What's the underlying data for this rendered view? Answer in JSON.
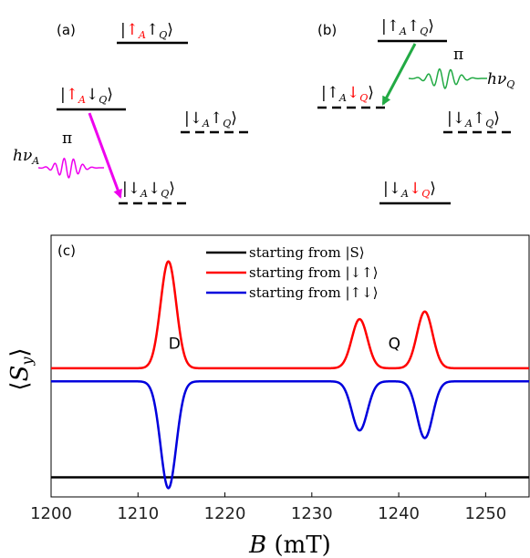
{
  "panels": {
    "a": {
      "label": "(a)",
      "levels": [
        {
          "ket": "|↑A↑Q⟩",
          "dashed": false
        },
        {
          "ket": "|↑A↓Q⟩",
          "dashed": false
        },
        {
          "ket": "|↓A↑Q⟩",
          "dashed": true
        },
        {
          "ket": "|↓A↓Q⟩",
          "dashed": true
        }
      ],
      "pulse_label": "π",
      "photon_label": "hνA",
      "pulse_color": "#ee00ee"
    },
    "b": {
      "label": "(b)",
      "levels": [
        {
          "ket": "|↑A↑Q⟩",
          "dashed": false
        },
        {
          "ket": "|↑A↓Q⟩",
          "dashed": true
        },
        {
          "ket": "|↓A↑Q⟩",
          "dashed": true
        },
        {
          "ket": "|↓A↓Q⟩",
          "dashed": false
        }
      ],
      "pulse_label": "π",
      "photon_label": "hνQ",
      "pulse_color": "#22aa44"
    }
  },
  "chart_data": {
    "type": "line",
    "panel_label": "(c)",
    "xlabel": "B (mT)",
    "ylabel": "⟨Sy⟩",
    "xlim": [
      1200,
      1255
    ],
    "ylim": [
      -1.18,
      1.22
    ],
    "x_ticks": [
      1200,
      1210,
      1220,
      1230,
      1240,
      1250
    ],
    "grid": false,
    "legend_position": "top-center",
    "annotations": [
      {
        "text": "D",
        "x": 1214.2,
        "y": 0.18
      },
      {
        "text": "Q",
        "x": 1239.5,
        "y": 0.18
      }
    ],
    "series": [
      {
        "name": "starting from |S⟩",
        "color": "#000000",
        "baseline": -1.0,
        "peaks": []
      },
      {
        "name": "starting from |↓↑⟩",
        "color": "#ff0000",
        "baseline": 0.0,
        "peaks": [
          {
            "center": 1213.5,
            "amplitude": 0.98,
            "width": 0.9
          },
          {
            "center": 1235.5,
            "amplitude": 0.45,
            "width": 0.9
          },
          {
            "center": 1243.0,
            "amplitude": 0.52,
            "width": 0.9
          }
        ]
      },
      {
        "name": "starting from |↑↓⟩",
        "color": "#0000dd",
        "baseline": -0.12,
        "peaks": [
          {
            "center": 1213.5,
            "amplitude": -0.98,
            "width": 0.9
          },
          {
            "center": 1235.5,
            "amplitude": -0.45,
            "width": 0.9
          },
          {
            "center": 1243.0,
            "amplitude": -0.52,
            "width": 0.9
          }
        ]
      }
    ]
  }
}
